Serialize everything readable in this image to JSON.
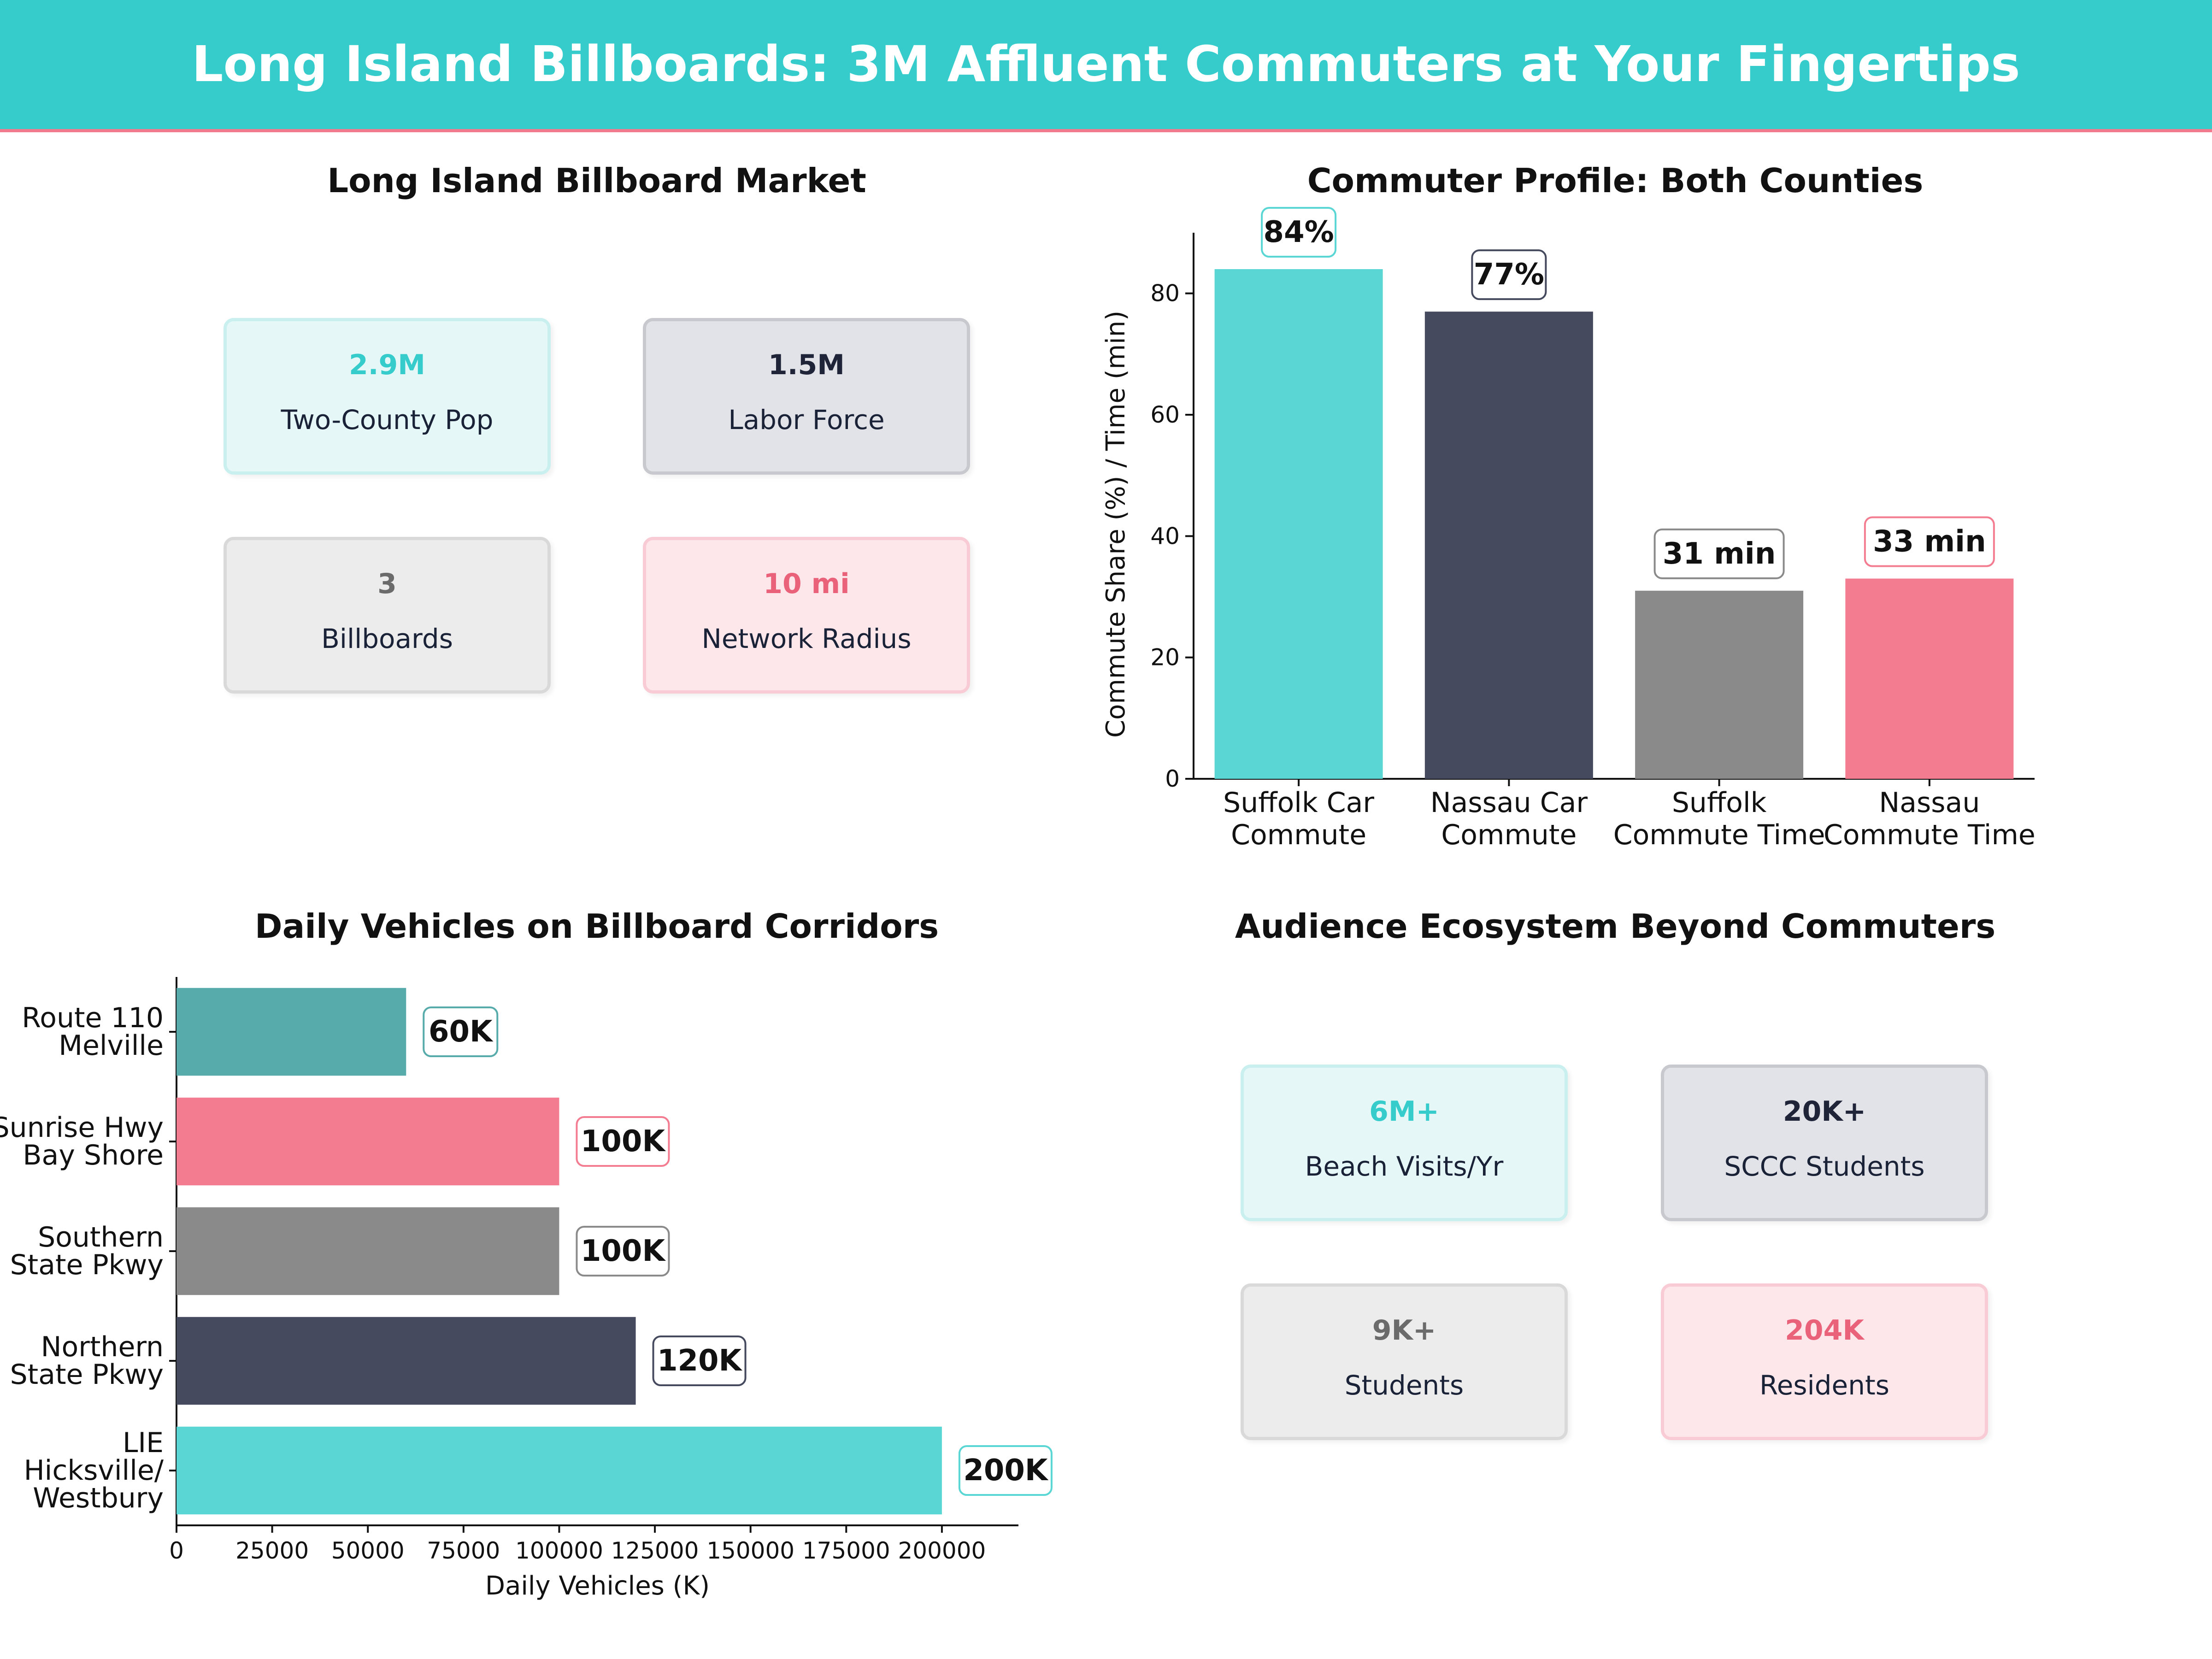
{
  "header": {
    "title": "Long Island Billboards: 3M Affluent Commuters at Your Fingertips"
  },
  "colors": {
    "teal": "#36cccc",
    "navy": "#464a5e",
    "gray": "#8a8a8a",
    "pink": "#f47c90",
    "dark_teal": "#57abab"
  },
  "market": {
    "title": "Long Island Billboard Market",
    "cards": [
      {
        "value": "2.9M",
        "label": "Two-County Pop",
        "theme": "teal"
      },
      {
        "value": "1.5M",
        "label": "Labor Force",
        "theme": "navy"
      },
      {
        "value": "3",
        "label": "Billboards",
        "theme": "gray"
      },
      {
        "value": "10 mi",
        "label": "Network Radius",
        "theme": "pink"
      }
    ]
  },
  "ecosystem": {
    "title": "Audience Ecosystem Beyond Commuters",
    "cards": [
      {
        "value": "6M+",
        "label": "Beach Visits/Yr",
        "theme": "teal"
      },
      {
        "value": "20K+",
        "label": "SCCC Students",
        "theme": "navy"
      },
      {
        "value": "9K+",
        "label": "Students",
        "theme": "gray"
      },
      {
        "value": "204K",
        "label": "Residents",
        "theme": "pink"
      }
    ]
  },
  "chart_data": [
    {
      "type": "bar",
      "title": "Commuter Profile: Both Counties",
      "ylabel": "Commute Share (%) / Time (min)",
      "xlabel": "",
      "ylim": [
        0,
        90
      ],
      "yticks": [
        0,
        20,
        40,
        60,
        80
      ],
      "categories": [
        "Suffolk Car\nCommute",
        "Nassau Car\nCommute",
        "Suffolk\nCommute Time",
        "Nassau\nCommute Time"
      ],
      "values": [
        84,
        77,
        31,
        33
      ],
      "data_labels": [
        "84%",
        "77%",
        "31 min",
        "33 min"
      ],
      "bar_colors": [
        "#5ad6d4",
        "#464a5e",
        "#8a8a8a",
        "#f47c90"
      ],
      "grid": false
    },
    {
      "type": "bar",
      "orientation": "horizontal",
      "title": "Daily Vehicles on Billboard Corridors",
      "xlabel": "Daily Vehicles (K)",
      "ylabel": "",
      "xlim": [
        0,
        220000
      ],
      "xticks": [
        0,
        25000,
        50000,
        75000,
        100000,
        125000,
        150000,
        175000,
        200000
      ],
      "categories": [
        "Route 110\nMelville",
        "Sunrise Hwy\nBay Shore",
        "Southern\nState Pkwy",
        "Northern\nState Pkwy",
        "LIE\nHicksville/\nWestbury"
      ],
      "values": [
        60000,
        100000,
        100000,
        120000,
        200000
      ],
      "data_labels": [
        "60K",
        "100K",
        "100K",
        "120K",
        "200K"
      ],
      "bar_colors": [
        "#57abab",
        "#f47c90",
        "#8a8a8a",
        "#464a5e",
        "#5ad6d4"
      ],
      "grid": false
    }
  ]
}
